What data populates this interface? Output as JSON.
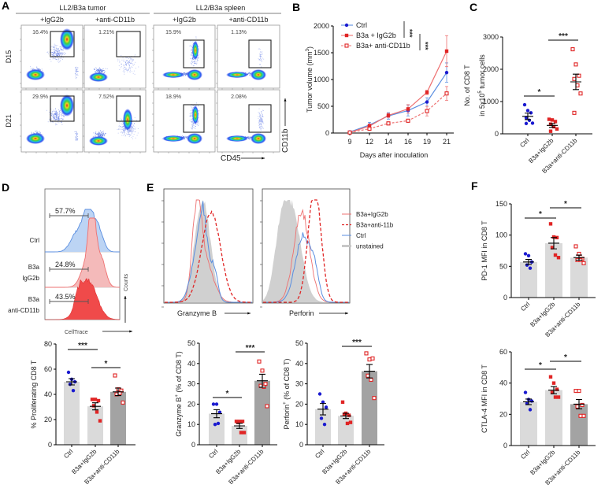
{
  "panel_labels": [
    "A",
    "B",
    "C",
    "D",
    "E",
    "F"
  ],
  "colors": {
    "ctrl": "#1a1ad0",
    "igg2b": "#e02525",
    "anti": "#e02525",
    "bar_light": "#dadada",
    "bar_dark": "#a3a3a3",
    "ctrl_line": "#5a8ee0",
    "igg2b_line": "#ee7070",
    "unstained": "#d0d0d0"
  },
  "panelA": {
    "groups": [
      {
        "label": "LL2/B3a tumor"
      },
      {
        "label": "LL2/B3a spleen"
      }
    ],
    "columns": [
      "+IgG2b",
      "+anti-CD11b",
      "+IgG2b",
      "+anti-CD11b"
    ],
    "rows": [
      "D15",
      "D21"
    ],
    "gate_percent": [
      [
        "16.4%",
        "1.21%",
        "15.9%",
        "1.13%"
      ],
      [
        "29.9%",
        "7.52%",
        "18.9%",
        "2.08%"
      ]
    ],
    "xlabel": "CD45",
    "ylabel": "CD11b"
  },
  "chart_data": [
    {
      "id": "B",
      "type": "line",
      "xlabel": "Days after inoculation",
      "ylabel": "Tumor volume (mm",
      "ylabel_sup": "3",
      "ylabel_end": ")",
      "categories": [
        "9",
        "12",
        "14",
        "16",
        "19",
        "21"
      ],
      "yticks": [
        "0",
        "500",
        "1000",
        "1500",
        "2000"
      ],
      "ylim": [
        0,
        2000
      ],
      "series": [
        {
          "name": "Ctrl",
          "marker": "filled-circle",
          "line": "solid",
          "values": [
            20,
            150,
            320,
            420,
            580,
            1130
          ],
          "sem": [
            20,
            50,
            60,
            100,
            80,
            180
          ]
        },
        {
          "name": "B3a + IgG2b",
          "marker": "filled-square",
          "line": "solid",
          "values": [
            10,
            130,
            330,
            450,
            760,
            1530
          ],
          "sem": [
            15,
            40,
            40,
            80,
            40,
            290
          ]
        },
        {
          "name": "B3a+ anti-CD11b",
          "marker": "open-square",
          "line": "dashed",
          "values": [
            10,
            80,
            180,
            230,
            410,
            740
          ],
          "sem": [
            10,
            20,
            30,
            30,
            90,
            130
          ]
        }
      ],
      "significance": [
        {
          "label": "***"
        },
        {
          "label": "***"
        }
      ],
      "legend": "top-left"
    },
    {
      "id": "C",
      "type": "scatter",
      "ylabel": "No. of CD8 T",
      "ylabel2": "in 5x10",
      "ylabel2_sup": "5",
      "ylabel2_end": " tumor cells",
      "categories": [
        "Ctrl",
        "B3a+IgG2b",
        "B3a+anti-CD11b"
      ],
      "yticks": [
        "0",
        "1000",
        "2000",
        "3000"
      ],
      "ylim": [
        0,
        3000
      ],
      "groups": [
        {
          "mean": 540,
          "sem": 100,
          "points": [
            900,
            720,
            650,
            500,
            420,
            330,
            320
          ]
        },
        {
          "mean": 260,
          "sem": 60,
          "points": [
            450,
            430,
            380,
            300,
            220,
            150,
            80
          ]
        },
        {
          "mean": 1610,
          "sem": 240,
          "points": [
            2620,
            2150,
            1800,
            1700,
            1500,
            1250,
            650
          ]
        }
      ],
      "significance": [
        {
          "from": 0,
          "to": 1,
          "label": "*"
        },
        {
          "from": 1,
          "to": 2,
          "label": "***"
        }
      ]
    },
    {
      "id": "D",
      "type": "bar",
      "ylabel": "% Proliferating CD8 T",
      "categories": [
        "Ctrl",
        "B3a+IgG2b",
        "B3a+anti-CD11b"
      ],
      "yticks": [
        "0",
        "20",
        "40",
        "60",
        "80"
      ],
      "ylim": [
        0,
        80
      ],
      "groups": [
        {
          "mean": 50,
          "sem": 2.5,
          "points": [
            57.5,
            52,
            50,
            48,
            43
          ]
        },
        {
          "mean": 30.5,
          "sem": 2.8,
          "points": [
            36,
            36,
            35,
            31,
            26,
            19
          ]
        },
        {
          "mean": 42,
          "sem": 3,
          "points": [
            55,
            44,
            43,
            40,
            41,
            33.5
          ]
        }
      ],
      "significance": [
        {
          "from": 0,
          "to": 1,
          "label": "***"
        },
        {
          "from": 1,
          "to": 2,
          "label": "*"
        }
      ]
    },
    {
      "id": "E1",
      "type": "bar",
      "ylabel": "Granzyme B",
      "ylabel_sup": "+",
      "ylabel_end": " (% of CD8 T)",
      "categories": [
        "Ctrl",
        "B3a+IgG2b",
        "B3a+anti-CD11b"
      ],
      "yticks": [
        "0",
        "10",
        "20",
        "30",
        "40",
        "50"
      ],
      "ylim": [
        0,
        50
      ],
      "groups": [
        {
          "mean": 15.3,
          "sem": 2,
          "points": [
            20,
            20,
            16,
            10,
            10.5
          ]
        },
        {
          "mean": 9.3,
          "sem": 1.3,
          "points": [
            11.5,
            11.5,
            11.5,
            11,
            6,
            6
          ]
        },
        {
          "mean": 31.5,
          "sem": 3.2,
          "points": [
            41,
            36.5,
            30,
            29,
            28.5,
            19
          ]
        }
      ],
      "significance": [
        {
          "from": 0,
          "to": 1,
          "label": "*"
        },
        {
          "from": 1,
          "to": 2,
          "label": "***"
        }
      ]
    },
    {
      "id": "E2",
      "type": "bar",
      "ylabel": "Perforin",
      "ylabel_sup": "+",
      "ylabel_end": " (% of CD8 T)",
      "categories": [
        "Ctrl",
        "B3a+IgG2b",
        "B3a+anti-CD11b"
      ],
      "yticks": [
        "0",
        "10",
        "20",
        "30",
        "40",
        "50"
      ],
      "ylim": [
        0,
        50
      ],
      "groups": [
        {
          "mean": 17.5,
          "sem": 2.8,
          "points": [
            25,
            21,
            18.5,
            13,
            10
          ]
        },
        {
          "mean": 14.2,
          "sem": 1.3,
          "points": [
            21,
            15.5,
            14.5,
            15,
            10.5,
            11
          ]
        },
        {
          "mean": 36.2,
          "sem": 3.3,
          "points": [
            45,
            42,
            42.5,
            34,
            32,
            23
          ]
        }
      ],
      "significance": [
        {
          "from": 1,
          "to": 2,
          "label": "***"
        }
      ]
    },
    {
      "id": "F1",
      "type": "bar",
      "ylabel": "PD-1 MFI in CD8 T",
      "categories": [
        "Ctrl",
        "B3a+IgG2b",
        "B3a+anti-CD11b"
      ],
      "yticks": [
        "0",
        "50",
        "100",
        "150"
      ],
      "ylim": [
        0,
        150
      ],
      "groups": [
        {
          "mean": 57,
          "sem": 4,
          "points": [
            70,
            67,
            57,
            52,
            47
          ]
        },
        {
          "mean": 87,
          "sem": 9,
          "points": [
            118,
            97,
            96,
            80,
            68,
            64
          ]
        },
        {
          "mean": 64,
          "sem": 4,
          "points": [
            82,
            70,
            62,
            60,
            60,
            55
          ]
        }
      ],
      "significance": [
        {
          "from": 0,
          "to": 1,
          "label": "*"
        },
        {
          "from": 1,
          "to": 2,
          "label": "*"
        }
      ]
    },
    {
      "id": "F2",
      "type": "bar",
      "ylabel": "CTLA-4 MFI in CD8 T",
      "categories": [
        "Ctrl",
        "B3a+IgG2b",
        "B3a+anti-CD11b"
      ],
      "yticks": [
        "0",
        "20",
        "40",
        "60"
      ],
      "ylim": [
        0,
        60
      ],
      "groups": [
        {
          "mean": 28,
          "sem": 1.8,
          "points": [
            34,
            29.5,
            28.5,
            27,
            23
          ]
        },
        {
          "mean": 35.5,
          "sem": 2.3,
          "points": [
            44,
            40,
            36,
            34,
            31,
            31
          ]
        },
        {
          "mean": 26.5,
          "sem": 3,
          "points": [
            35,
            35,
            26,
            25,
            19,
            19
          ]
        }
      ],
      "significance": [
        {
          "from": 0,
          "to": 1,
          "label": "*"
        },
        {
          "from": 1,
          "to": 2,
          "label": "*"
        }
      ]
    }
  ],
  "panelD_hist": {
    "rows": [
      {
        "label": "Ctrl",
        "percent": "57.7%"
      },
      {
        "label": "B3a",
        "label2": "IgG2b",
        "percent": "24.8%"
      },
      {
        "label": "B3a",
        "label2": "anti-CD11b",
        "percent": "43.5%"
      }
    ],
    "xlabel": "CellTrace",
    "ylabel": "Counts"
  },
  "panelE_hist": {
    "plots": [
      {
        "xlabel": "Granzyme B"
      },
      {
        "xlabel": "Perforin"
      }
    ],
    "legend": [
      {
        "label": "B3a+IgG2b",
        "style": "solid-pink"
      },
      {
        "label": "B3a+anti-11b",
        "style": "dashed-red"
      },
      {
        "label": "Ctrl",
        "style": "solid-blue"
      },
      {
        "label": "unstained",
        "style": "gray-fill"
      }
    ]
  }
}
